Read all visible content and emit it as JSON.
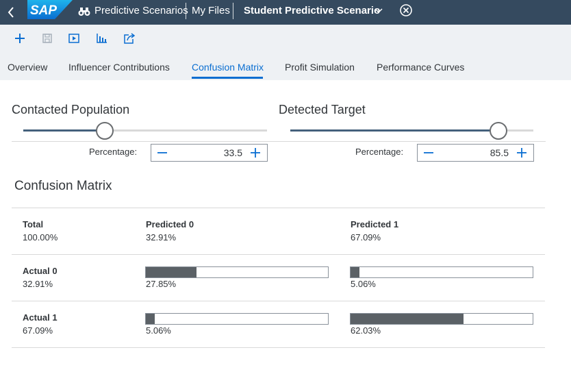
{
  "shell": {
    "title_app": "Predictive Scenarios",
    "breadcrumb_files": "My Files",
    "scenario_name": "Student Predictive Scenario",
    "logo_text": "SAP"
  },
  "tabs": [
    {
      "label": "Overview",
      "active": false
    },
    {
      "label": "Influencer Contributions",
      "active": false
    },
    {
      "label": "Confusion Matrix",
      "active": true
    },
    {
      "label": "Profit Simulation",
      "active": false
    },
    {
      "label": "Performance Curves",
      "active": false
    }
  ],
  "sliders": {
    "contacted": {
      "title": "Contacted Population",
      "label": "Percentage:",
      "value": "33.5",
      "level": 0.335
    },
    "detected": {
      "title": "Detected Target",
      "label": "Percentage:",
      "value": "85.5",
      "level": 0.855
    }
  },
  "matrix": {
    "title": "Confusion Matrix",
    "header": [
      {
        "name": "Total",
        "pct": "100.00%"
      },
      {
        "name": "Predicted 0",
        "pct": "32.91%"
      },
      {
        "name": "Predicted 1",
        "pct": "67.09%"
      }
    ],
    "rows": [
      {
        "name": "Actual 0",
        "pct": "32.91%",
        "cells": [
          {
            "text": "27.85%",
            "value": 0.2785
          },
          {
            "text": "5.06%",
            "value": 0.0506
          }
        ]
      },
      {
        "name": "Actual 1",
        "pct": "67.09%",
        "cells": [
          {
            "text": "5.06%",
            "value": 0.0506
          },
          {
            "text": "62.03%",
            "value": 0.6203
          }
        ]
      }
    ]
  },
  "colors": {
    "shell": "#354a5f",
    "accent": "#0a6ed1",
    "bar_fill": "#5b6166",
    "slider_fill": "#45617c"
  }
}
